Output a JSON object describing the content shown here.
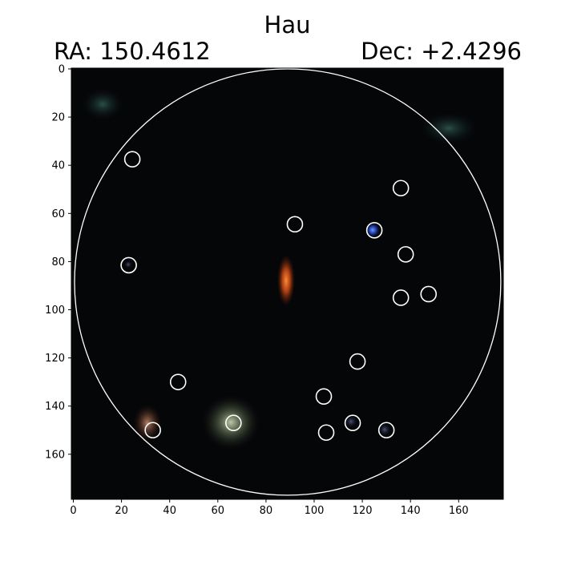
{
  "figure": {
    "title": "Hau",
    "ra_label": "RA: 150.4612",
    "dec_label": "Dec: +2.4296"
  },
  "axes": {
    "x_ticks": [
      "0",
      "20",
      "40",
      "60",
      "80",
      "100",
      "120",
      "140",
      "160"
    ],
    "y_ticks": [
      "0",
      "20",
      "40",
      "60",
      "80",
      "100",
      "120",
      "140",
      "160"
    ],
    "x_range": [
      0,
      179
    ],
    "y_range": [
      0,
      179
    ]
  },
  "image": {
    "background_color": "#050608",
    "aperture": {
      "cx": 89,
      "cy": 88.5,
      "r": 88.5,
      "color": "#ffffff"
    },
    "markers": [
      {
        "x": 24.5,
        "y": 37.5
      },
      {
        "x": 23,
        "y": 81.5
      },
      {
        "x": 43.5,
        "y": 130
      },
      {
        "x": 33,
        "y": 150
      },
      {
        "x": 66.5,
        "y": 147
      },
      {
        "x": 92,
        "y": 64.5
      },
      {
        "x": 125,
        "y": 67
      },
      {
        "x": 136,
        "y": 49.5
      },
      {
        "x": 138,
        "y": 77
      },
      {
        "x": 136,
        "y": 95
      },
      {
        "x": 147.5,
        "y": 93.5
      },
      {
        "x": 118,
        "y": 121.5
      },
      {
        "x": 104,
        "y": 136
      },
      {
        "x": 105,
        "y": 151
      },
      {
        "x": 116,
        "y": 147
      },
      {
        "x": 130,
        "y": 150
      }
    ],
    "marker_color": "#ffffff",
    "sources": [
      {
        "name": "central-galaxy",
        "x": 89,
        "y": 88,
        "color": "#e0561a"
      },
      {
        "name": "blue-star",
        "x": 125,
        "y": 67,
        "color": "#3d6dff"
      },
      {
        "name": "green-galaxy",
        "x": 66,
        "y": 147,
        "color": "#9fb08a"
      },
      {
        "name": "orange-source",
        "x": 31,
        "y": 147,
        "color": "#b07a5a"
      },
      {
        "name": "teal-haze-left",
        "x": 13,
        "y": 15,
        "color": "#2c5a55"
      },
      {
        "name": "teal-haze-right",
        "x": 158,
        "y": 25,
        "color": "#2c5a55"
      },
      {
        "name": "faint-blue",
        "x": 130,
        "y": 150,
        "color": "#3a4aa0"
      },
      {
        "name": "faint-grey",
        "x": 116,
        "y": 147,
        "color": "#5a6a80"
      }
    ]
  }
}
